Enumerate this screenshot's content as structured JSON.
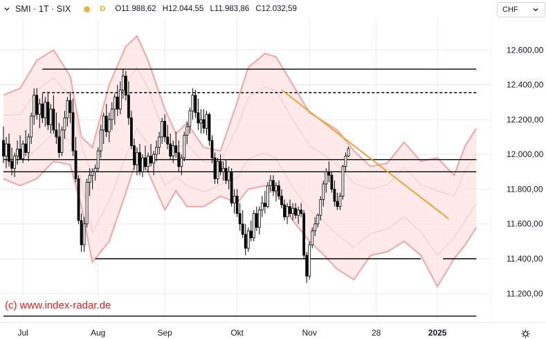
{
  "header": {
    "symbol": "SMI · 1T · SIX",
    "data_badge": "D",
    "ohlc": [
      {
        "key": "O",
        "value": "11.988,62"
      },
      {
        "key": "H",
        "value": "12.044,55"
      },
      {
        "key": "L",
        "value": "11.983,86"
      },
      {
        "key": "C",
        "value": "12.032,59"
      }
    ]
  },
  "currency": {
    "label": "CHF"
  },
  "watermark": "(c) www.index-radar.de",
  "colors": {
    "up": "#ffffff",
    "down": "#000000",
    "wick": "#000000",
    "band_outer": "#f5a3a3",
    "band_fill": "#fde3e3",
    "band_inner": "#f8c4c4",
    "trendline": "#f59a1d",
    "level": "#000000",
    "grid": "#eaeaea"
  },
  "chart_data": {
    "type": "candlestick",
    "y_range": [
      11050,
      12780
    ],
    "y_ticks": [
      {
        "value": 12600,
        "label": "12.600,00"
      },
      {
        "value": 12400,
        "label": "12.400,00"
      },
      {
        "value": 12200,
        "label": "12.200,00"
      },
      {
        "value": 12000,
        "label": "12.000,00"
      },
      {
        "value": 11800,
        "label": "11.800,00"
      },
      {
        "value": 11600,
        "label": "11.600,00"
      },
      {
        "value": 11400,
        "label": "11.400,00"
      },
      {
        "value": 11200,
        "label": "11.200,00"
      }
    ],
    "x_ticks": [
      {
        "label": "Jul",
        "bar": 7,
        "bold": false
      },
      {
        "label": "Aug",
        "bar": 34,
        "bold": false
      },
      {
        "label": "Sep",
        "bar": 58,
        "bold": false
      },
      {
        "label": "Okt",
        "bar": 84,
        "bold": false
      },
      {
        "label": "Nov",
        "bar": 110,
        "bold": false
      },
      {
        "label": "28",
        "bar": 134,
        "bold": false
      },
      {
        "label": "2025",
        "bar": 156,
        "bold": true
      }
    ],
    "candles": [
      [
        12080,
        12160,
        11950,
        11990
      ],
      [
        11990,
        12100,
        11920,
        12060
      ],
      [
        12060,
        12120,
        11930,
        11960
      ],
      [
        11960,
        12040,
        11880,
        11920
      ],
      [
        11920,
        12010,
        11870,
        11990
      ],
      [
        11990,
        12080,
        11940,
        12030
      ],
      [
        12030,
        12110,
        11980,
        11975
      ],
      [
        11975,
        12080,
        11950,
        12060
      ],
      [
        12060,
        12140,
        11990,
        12010
      ],
      [
        12010,
        12120,
        11960,
        12100
      ],
      [
        12100,
        12240,
        12060,
        12220
      ],
      [
        12220,
        12380,
        12170,
        12340
      ],
      [
        12340,
        12380,
        12200,
        12230
      ],
      [
        12230,
        12320,
        12150,
        12290
      ],
      [
        12290,
        12350,
        12180,
        12210
      ],
      [
        12210,
        12330,
        12160,
        12300
      ],
      [
        12300,
        12360,
        12140,
        12170
      ],
      [
        12170,
        12290,
        12120,
        12260
      ],
      [
        12260,
        12340,
        12120,
        12140
      ],
      [
        12140,
        12240,
        12060,
        12100
      ],
      [
        12100,
        12180,
        11980,
        12010
      ],
      [
        12010,
        12160,
        11990,
        12140
      ],
      [
        12140,
        12250,
        12090,
        12210
      ],
      [
        12210,
        12330,
        12160,
        12310
      ],
      [
        12310,
        12360,
        12180,
        12240
      ],
      [
        12240,
        12320,
        11990,
        12020
      ],
      [
        12020,
        12100,
        11840,
        11860
      ],
      [
        11860,
        11880,
        11600,
        11620
      ],
      [
        11620,
        11660,
        11440,
        11480
      ],
      [
        11480,
        11640,
        11440,
        11600
      ],
      [
        11600,
        11860,
        11580,
        11840
      ],
      [
        11840,
        11920,
        11760,
        11880
      ],
      [
        11880,
        11920,
        11800,
        11900
      ],
      [
        11900,
        11940,
        11850,
        11920
      ],
      [
        11920,
        12040,
        11900,
        12020
      ],
      [
        12020,
        12170,
        11980,
        12140
      ],
      [
        12140,
        12240,
        12060,
        12220
      ],
      [
        12220,
        12290,
        12100,
        12130
      ],
      [
        12130,
        12240,
        12070,
        12200
      ],
      [
        12200,
        12300,
        12140,
        12260
      ],
      [
        12260,
        12350,
        12170,
        12330
      ],
      [
        12330,
        12400,
        12220,
        12260
      ],
      [
        12260,
        12420,
        12230,
        12370
      ],
      [
        12370,
        12490,
        12320,
        12450
      ],
      [
        12450,
        12480,
        12310,
        12340
      ],
      [
        12340,
        12420,
        12170,
        12210
      ],
      [
        12210,
        12250,
        12030,
        12050
      ],
      [
        12050,
        12090,
        11910,
        11940
      ],
      [
        11940,
        12040,
        11880,
        12010
      ],
      [
        12010,
        12060,
        11880,
        11900
      ],
      [
        11900,
        12000,
        11870,
        11980
      ],
      [
        11980,
        12050,
        11910,
        11930
      ],
      [
        11930,
        12010,
        11900,
        11990
      ],
      [
        11990,
        12060,
        11930,
        11950
      ],
      [
        11950,
        12020,
        11880,
        12000
      ],
      [
        12000,
        12080,
        11960,
        12040
      ],
      [
        12040,
        12130,
        12000,
        12100
      ],
      [
        12100,
        12210,
        12060,
        12190
      ],
      [
        12190,
        12230,
        12070,
        12100
      ],
      [
        12100,
        12170,
        12030,
        12060
      ],
      [
        12060,
        12120,
        11970,
        11990
      ],
      [
        11990,
        12080,
        11950,
        12050
      ],
      [
        12050,
        12130,
        11980,
        12010
      ],
      [
        12010,
        12080,
        11900,
        11930
      ],
      [
        11930,
        12000,
        11880,
        11980
      ],
      [
        11980,
        12130,
        11960,
        12110
      ],
      [
        12110,
        12190,
        12060,
        12160
      ],
      [
        12160,
        12270,
        12120,
        12250
      ],
      [
        12250,
        12380,
        12200,
        12340
      ],
      [
        12340,
        12370,
        12210,
        12240
      ],
      [
        12240,
        12320,
        12140,
        12180
      ],
      [
        12180,
        12260,
        12120,
        12200
      ],
      [
        12200,
        12260,
        12120,
        12150
      ],
      [
        12150,
        12250,
        12110,
        12230
      ],
      [
        12230,
        12240,
        12050,
        12080
      ],
      [
        12080,
        12110,
        11950,
        11980
      ],
      [
        11980,
        12010,
        11830,
        11860
      ],
      [
        11860,
        11980,
        11830,
        11960
      ],
      [
        11960,
        12000,
        11880,
        11900
      ],
      [
        11900,
        11960,
        11850,
        11920
      ],
      [
        11920,
        11970,
        11830,
        11850
      ],
      [
        11850,
        11930,
        11800,
        11900
      ],
      [
        11900,
        11920,
        11700,
        11720
      ],
      [
        11720,
        11800,
        11660,
        11760
      ],
      [
        11760,
        11800,
        11640,
        11660
      ],
      [
        11660,
        11720,
        11560,
        11600
      ],
      [
        11600,
        11680,
        11520,
        11540
      ],
      [
        11540,
        11600,
        11420,
        11460
      ],
      [
        11460,
        11580,
        11440,
        11560
      ],
      [
        11560,
        11620,
        11500,
        11520
      ],
      [
        11520,
        11680,
        11500,
        11660
      ],
      [
        11660,
        11700,
        11560,
        11580
      ],
      [
        11580,
        11700,
        11540,
        11680
      ],
      [
        11680,
        11760,
        11640,
        11720
      ],
      [
        11720,
        11790,
        11660,
        11700
      ],
      [
        11700,
        11840,
        11690,
        11820
      ],
      [
        11820,
        11880,
        11780,
        11850
      ],
      [
        11850,
        11880,
        11760,
        11790
      ],
      [
        11790,
        11840,
        11730,
        11820
      ],
      [
        11820,
        11850,
        11740,
        11760
      ],
      [
        11760,
        11800,
        11690,
        11710
      ],
      [
        11710,
        11740,
        11620,
        11640
      ],
      [
        11640,
        11720,
        11600,
        11700
      ],
      [
        11700,
        11740,
        11640,
        11660
      ],
      [
        11660,
        11720,
        11620,
        11690
      ],
      [
        11690,
        11720,
        11630,
        11650
      ],
      [
        11650,
        11700,
        11600,
        11680
      ],
      [
        11680,
        11720,
        11640,
        11660
      ],
      [
        11660,
        11680,
        11400,
        11420
      ],
      [
        11420,
        11440,
        11260,
        11300
      ],
      [
        11300,
        11500,
        11280,
        11480
      ],
      [
        11480,
        11580,
        11460,
        11560
      ],
      [
        11560,
        11640,
        11530,
        11600
      ],
      [
        11600,
        11660,
        11580,
        11650
      ],
      [
        11650,
        11760,
        11620,
        11740
      ],
      [
        11740,
        11850,
        11700,
        11830
      ],
      [
        11830,
        11920,
        11780,
        11900
      ],
      [
        11900,
        11960,
        11840,
        11880
      ],
      [
        11880,
        11900,
        11780,
        11800
      ],
      [
        11800,
        11850,
        11700,
        11730
      ],
      [
        11730,
        11780,
        11680,
        11700
      ],
      [
        11700,
        11780,
        11680,
        11760
      ],
      [
        11760,
        11940,
        11740,
        11930
      ],
      [
        11930,
        12010,
        11900,
        11990
      ],
      [
        11990,
        12045,
        11984,
        12033
      ]
    ],
    "bands": {
      "outer_upper": [
        [
          0,
          12340
        ],
        [
          6,
          12380
        ],
        [
          12,
          12540
        ],
        [
          18,
          12600
        ],
        [
          24,
          12450
        ],
        [
          28,
          12100
        ],
        [
          32,
          12040
        ],
        [
          38,
          12400
        ],
        [
          44,
          12620
        ],
        [
          48,
          12680
        ],
        [
          52,
          12540
        ],
        [
          58,
          12260
        ],
        [
          62,
          12120
        ],
        [
          66,
          12180
        ],
        [
          72,
          12040
        ],
        [
          78,
          12020
        ],
        [
          84,
          12300
        ],
        [
          88,
          12500
        ],
        [
          94,
          12580
        ],
        [
          98,
          12560
        ],
        [
          104,
          12400
        ],
        [
          110,
          12240
        ],
        [
          114,
          12200
        ],
        [
          120,
          12140
        ],
        [
          126,
          12020
        ],
        [
          132,
          11930
        ],
        [
          138,
          11950
        ],
        [
          144,
          12070
        ],
        [
          150,
          11960
        ],
        [
          156,
          11980
        ],
        [
          162,
          11880
        ],
        [
          166,
          12050
        ],
        [
          170,
          12150
        ]
      ],
      "outer_lower": [
        [
          0,
          11860
        ],
        [
          6,
          11820
        ],
        [
          12,
          11860
        ],
        [
          18,
          11960
        ],
        [
          24,
          11940
        ],
        [
          28,
          11700
        ],
        [
          32,
          11380
        ],
        [
          38,
          11500
        ],
        [
          44,
          11780
        ],
        [
          48,
          11980
        ],
        [
          52,
          11900
        ],
        [
          58,
          11680
        ],
        [
          62,
          11790
        ],
        [
          66,
          11700
        ],
        [
          72,
          11700
        ],
        [
          78,
          11760
        ],
        [
          84,
          11720
        ],
        [
          88,
          11800
        ],
        [
          94,
          11820
        ],
        [
          98,
          11780
        ],
        [
          104,
          11620
        ],
        [
          110,
          11500
        ],
        [
          114,
          11440
        ],
        [
          120,
          11340
        ],
        [
          126,
          11280
        ],
        [
          132,
          11420
        ],
        [
          138,
          11440
        ],
        [
          144,
          11500
        ],
        [
          150,
          11420
        ],
        [
          156,
          11240
        ],
        [
          162,
          11400
        ],
        [
          166,
          11480
        ],
        [
          170,
          11580
        ]
      ],
      "mid": [
        [
          0,
          12110
        ],
        [
          6,
          12080
        ],
        [
          12,
          12200
        ],
        [
          18,
          12280
        ],
        [
          24,
          12220
        ],
        [
          28,
          12000
        ],
        [
          32,
          11720
        ],
        [
          38,
          11960
        ],
        [
          44,
          12200
        ],
        [
          48,
          12320
        ],
        [
          52,
          12220
        ],
        [
          58,
          11960
        ],
        [
          62,
          11950
        ],
        [
          66,
          11940
        ],
        [
          72,
          11870
        ],
        [
          78,
          11890
        ],
        [
          84,
          12010
        ],
        [
          88,
          12150
        ],
        [
          94,
          12200
        ],
        [
          98,
          12170
        ],
        [
          104,
          12000
        ],
        [
          110,
          11860
        ],
        [
          114,
          11820
        ],
        [
          120,
          11740
        ],
        [
          126,
          11650
        ],
        [
          132,
          11670
        ],
        [
          138,
          11700
        ],
        [
          144,
          11780
        ],
        [
          150,
          11690
        ],
        [
          156,
          11600
        ],
        [
          162,
          11640
        ],
        [
          166,
          11760
        ],
        [
          170,
          11860
        ]
      ]
    },
    "levels": [
      {
        "y": 12490,
        "x0": 14,
        "x1": 170,
        "style": "solid"
      },
      {
        "y": 12355,
        "x0": 14,
        "x1": 170,
        "style": "dashed"
      },
      {
        "y": 11970,
        "x0": 0,
        "x1": 170,
        "style": "solid"
      },
      {
        "y": 11900,
        "x0": 0,
        "x1": 170,
        "style": "solid"
      },
      {
        "y": 11400,
        "x0": 33,
        "x1": 150,
        "style": "solid"
      },
      {
        "y": 11400,
        "x0": 158,
        "x1": 170,
        "style": "solid"
      },
      {
        "y": 11070,
        "x0": 0,
        "x1": 170,
        "style": "solid"
      }
    ],
    "trendline": {
      "from": [
        100,
        12370
      ],
      "to": [
        160,
        11630
      ]
    }
  }
}
